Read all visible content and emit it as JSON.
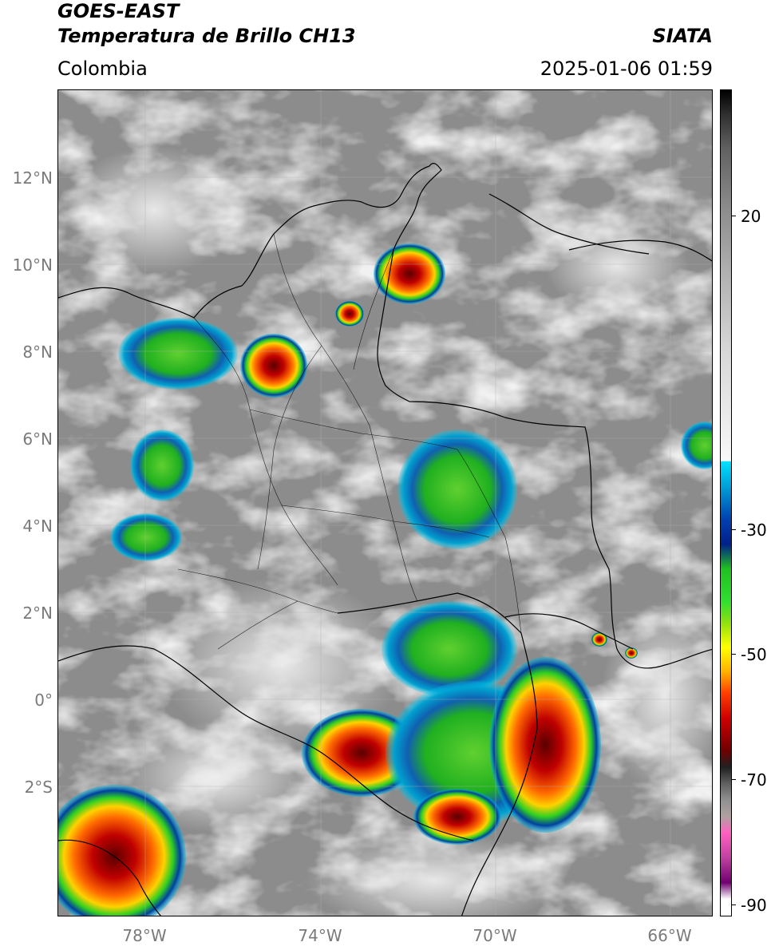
{
  "header": {
    "satellite": "GOES-EAST",
    "product": "Temperatura de Brillo CH13",
    "organization": "SIATA",
    "region": "Colombia",
    "datetime": "2025-01-06 01:59"
  },
  "map": {
    "lon_range": [
      -80,
      -65
    ],
    "lat_range": [
      -5,
      14
    ],
    "lat_ticks": [
      {
        "value": 12,
        "label": "12°N"
      },
      {
        "value": 10,
        "label": "10°N"
      },
      {
        "value": 8,
        "label": "8°N"
      },
      {
        "value": 6,
        "label": "6°N"
      },
      {
        "value": 4,
        "label": "4°N"
      },
      {
        "value": 2,
        "label": "2°N"
      },
      {
        "value": 0,
        "label": "0°"
      },
      {
        "value": -2,
        "label": "2°S"
      }
    ],
    "lon_ticks": [
      {
        "value": -78,
        "label": "78°W"
      },
      {
        "value": -74,
        "label": "74°W"
      },
      {
        "value": -70,
        "label": "70°W"
      },
      {
        "value": -66,
        "label": "66°W"
      }
    ]
  },
  "colorbar": {
    "range": [
      -92,
      27
    ],
    "ticks": [
      {
        "value": 20,
        "label": "20"
      },
      {
        "value": -30,
        "label": "-30"
      },
      {
        "value": -50,
        "label": "-50"
      },
      {
        "value": -70,
        "label": "-70"
      },
      {
        "value": -90,
        "label": "-90"
      }
    ]
  }
}
